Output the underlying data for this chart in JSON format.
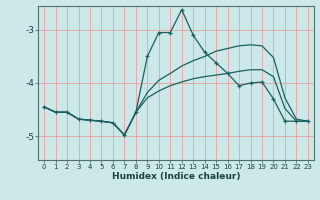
{
  "xlabel": "Humidex (Indice chaleur)",
  "background_color": "#cce8e8",
  "grid_color": "#e8a0a0",
  "line_color": "#1a6060",
  "x_ticks": [
    0,
    1,
    2,
    3,
    4,
    5,
    6,
    7,
    8,
    9,
    10,
    11,
    12,
    13,
    14,
    15,
    16,
    17,
    18,
    19,
    20,
    21,
    22,
    23
  ],
  "ylim": [
    -5.45,
    -2.55
  ],
  "yticks": [
    -5,
    -4,
    -3
  ],
  "series": [
    {
      "x": [
        0,
        1,
        2,
        3,
        4,
        5,
        6,
        7,
        8,
        9,
        10,
        11,
        12,
        13,
        14,
        15,
        16,
        17,
        18,
        19,
        20,
        21,
        22,
        23
      ],
      "y": [
        -4.45,
        -4.55,
        -4.55,
        -4.68,
        -4.7,
        -4.72,
        -4.75,
        -4.98,
        -4.55,
        -3.5,
        -3.05,
        -3.05,
        -2.62,
        -3.1,
        -3.42,
        -3.62,
        -3.82,
        -4.05,
        -4.0,
        -3.98,
        -4.3,
        -4.72,
        -4.72,
        -4.72
      ],
      "marker": "+"
    },
    {
      "x": [
        0,
        1,
        2,
        3,
        4,
        5,
        6,
        7,
        8,
        9,
        10,
        11,
        12,
        13,
        14,
        15,
        16,
        17,
        18,
        19,
        20,
        21,
        22,
        23
      ],
      "y": [
        -4.45,
        -4.55,
        -4.55,
        -4.68,
        -4.7,
        -4.72,
        -4.75,
        -4.98,
        -4.55,
        -4.18,
        -3.95,
        -3.82,
        -3.68,
        -3.58,
        -3.5,
        -3.4,
        -3.35,
        -3.3,
        -3.28,
        -3.3,
        -3.52,
        -4.28,
        -4.68,
        -4.72
      ],
      "marker": null
    },
    {
      "x": [
        0,
        1,
        2,
        3,
        4,
        5,
        6,
        7,
        8,
        9,
        10,
        11,
        12,
        13,
        14,
        15,
        16,
        17,
        18,
        19,
        20,
        21,
        22,
        23
      ],
      "y": [
        -4.45,
        -4.55,
        -4.55,
        -4.68,
        -4.7,
        -4.72,
        -4.75,
        -4.98,
        -4.55,
        -4.28,
        -4.15,
        -4.05,
        -3.98,
        -3.92,
        -3.88,
        -3.85,
        -3.82,
        -3.78,
        -3.75,
        -3.75,
        -3.88,
        -4.48,
        -4.72,
        -4.72
      ],
      "marker": null
    }
  ]
}
